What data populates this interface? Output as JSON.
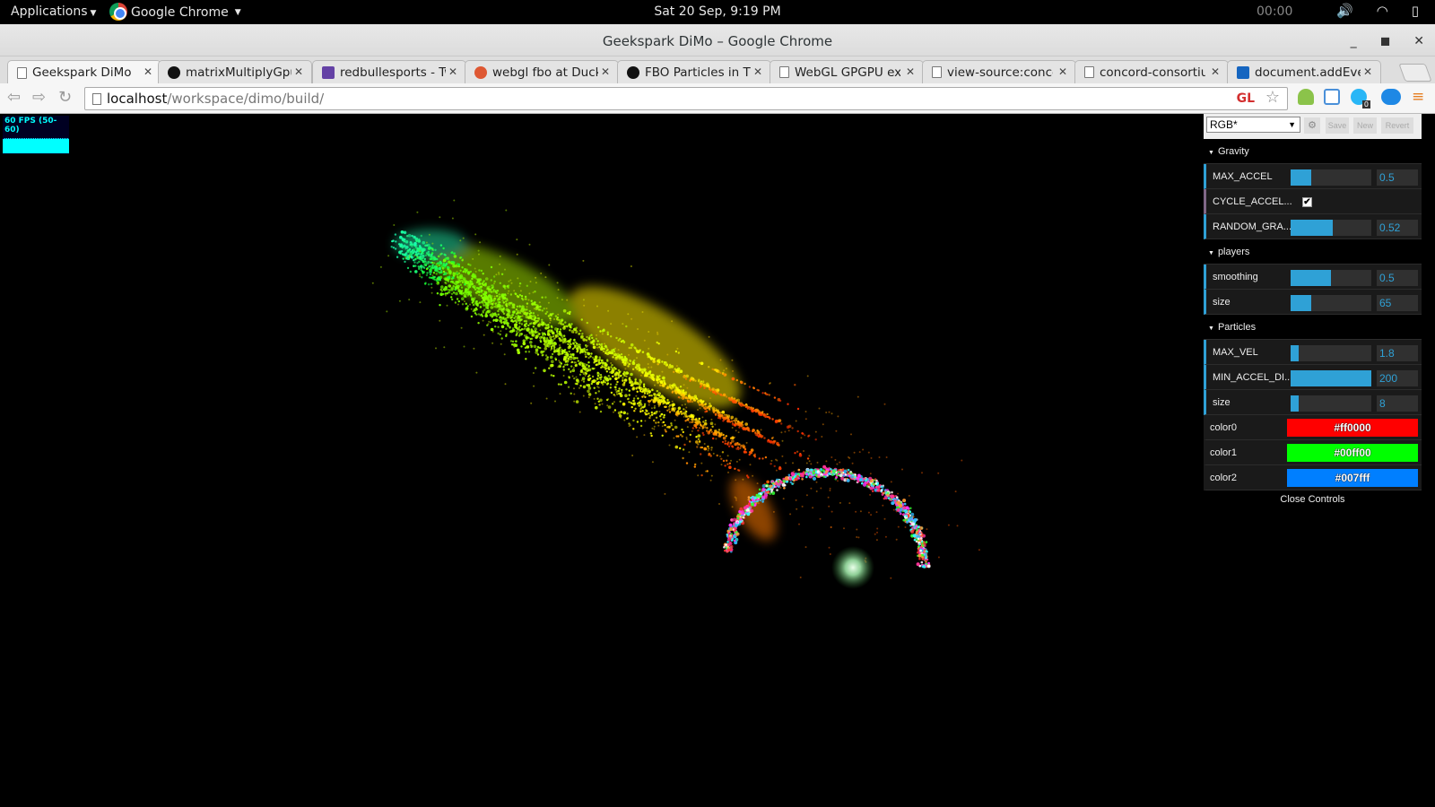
{
  "topbar": {
    "applications": "Applications",
    "app_name": "Google Chrome",
    "clock": "Sat 20 Sep,  9:19 PM",
    "timer": "00:00"
  },
  "window": {
    "title": "Geekspark DiMo – Google Chrome"
  },
  "tabs": [
    {
      "label": "Geekspark DiMo",
      "icon": "page-icon"
    },
    {
      "label": "matrixMultiplyGpu",
      "icon": "github-icon"
    },
    {
      "label": "redbullesports - Tw",
      "icon": "twitch-icon"
    },
    {
      "label": "webgl fbo at Duck",
      "icon": "duckduckgo-icon"
    },
    {
      "label": "FBO Particles in Th",
      "icon": "github-icon"
    },
    {
      "label": "WebGL GPGPU exp",
      "icon": "page-icon"
    },
    {
      "label": "view-source:conco",
      "icon": "page-icon"
    },
    {
      "label": "concord-consortium",
      "icon": "page-icon"
    },
    {
      "label": "document.addEven",
      "icon": "doc-icon"
    }
  ],
  "address": {
    "host": "localhost",
    "path": "/workspace/dimo/build/",
    "gl_badge": "GL",
    "ext_badge": "0"
  },
  "fps": {
    "text": "60 FPS (50-60)"
  },
  "gui": {
    "preset": "RGB*",
    "save": "Save",
    "new": "New",
    "revert": "Revert",
    "close": "Close Controls",
    "folders": {
      "gravity": {
        "title": "Gravity",
        "max_accel": {
          "label": "MAX_ACCEL",
          "value": "0.5",
          "fill": 0.25
        },
        "cycle_accel": {
          "label": "CYCLE_ACCEL...",
          "checked": "✔"
        },
        "random_gravity": {
          "label": "RANDOM_GRA...",
          "value": "0.52",
          "fill": 0.52
        }
      },
      "players": {
        "title": "players",
        "smoothing": {
          "label": "smoothing",
          "value": "0.5",
          "fill": 0.5
        },
        "size": {
          "label": "size",
          "value": "65",
          "fill": 0.25
        }
      },
      "particles": {
        "title": "Particles",
        "max_vel": {
          "label": "MAX_VEL",
          "value": "1.8",
          "fill": 0.1
        },
        "min_accel_dist": {
          "label": "MIN_ACCEL_DI...",
          "value": "200",
          "fill": 1.0
        },
        "size": {
          "label": "size",
          "value": "8",
          "fill": 0.1
        },
        "color0": {
          "label": "color0",
          "value": "#ff0000",
          "color": "#ff0000"
        },
        "color1": {
          "label": "color1",
          "value": "#00ff00",
          "color": "#00ff00"
        },
        "color2": {
          "label": "color2",
          "value": "#007fff",
          "color": "#007fff"
        }
      }
    }
  }
}
